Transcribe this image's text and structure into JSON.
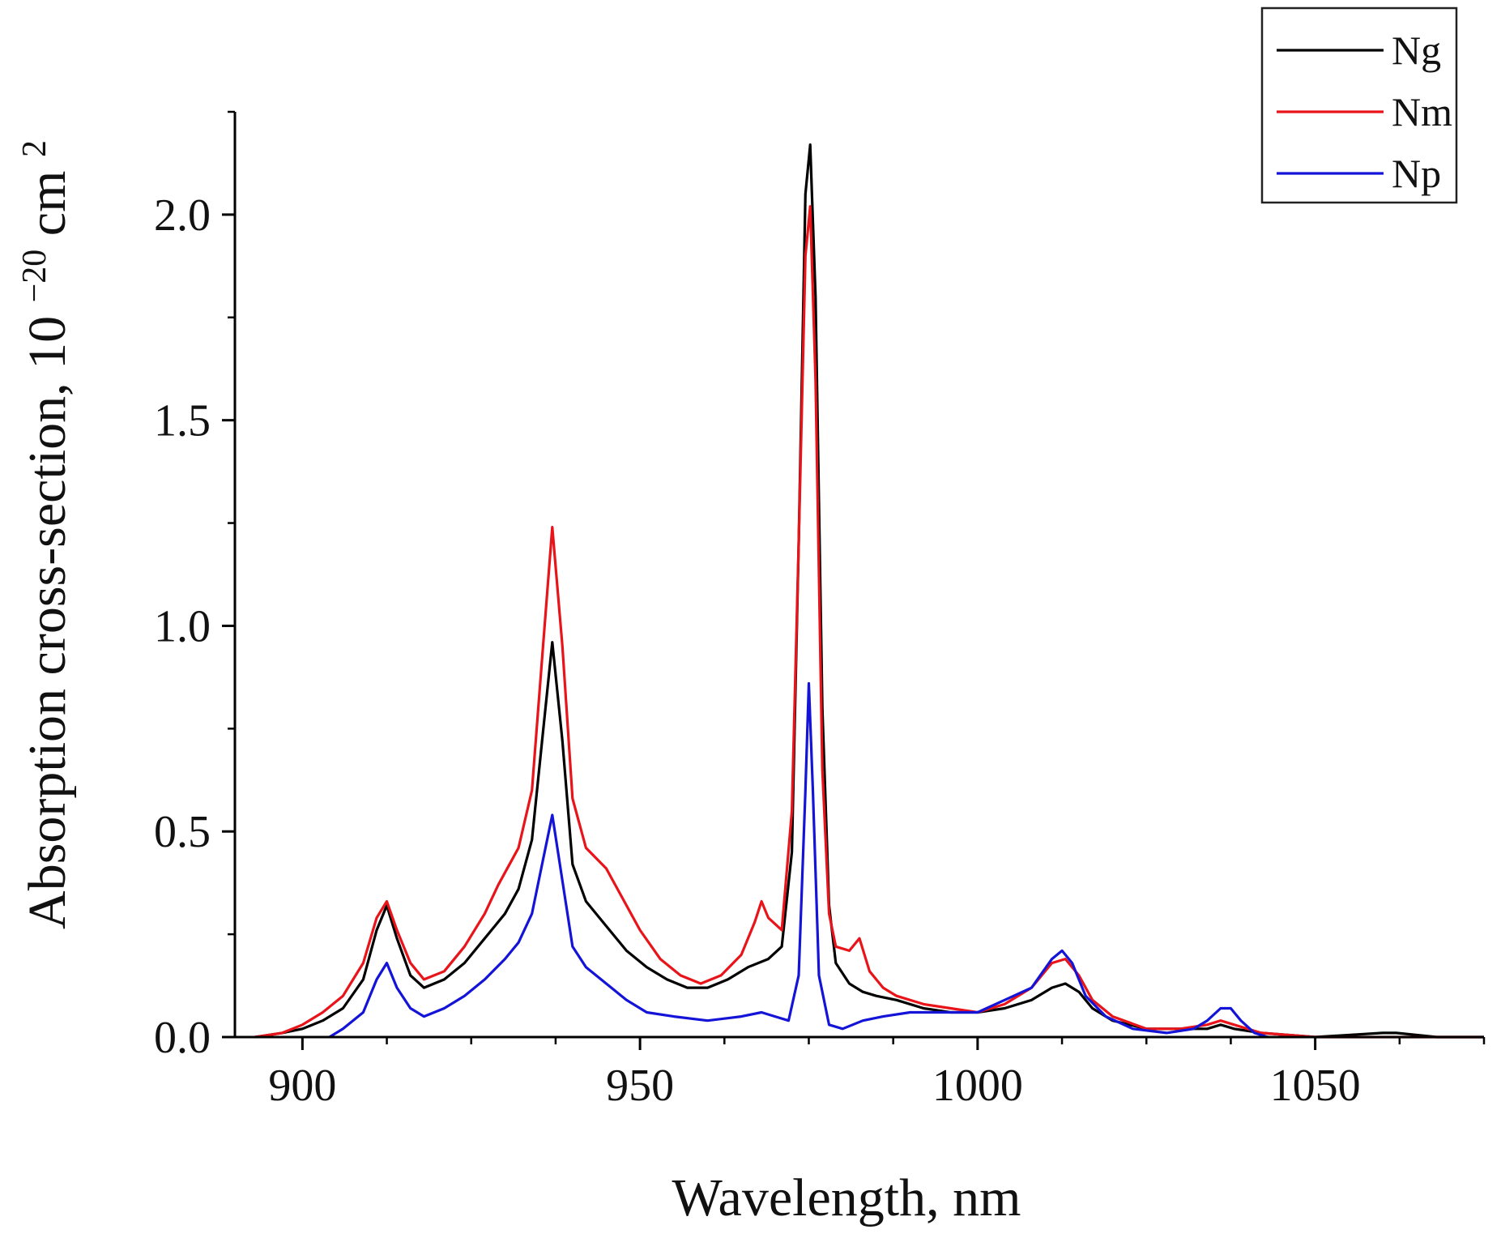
{
  "chart_data": {
    "type": "line",
    "title": "",
    "xlabel": "Wavelength, nm",
    "ylabel": {
      "main": "Absorption cross-section,",
      "unit_base": "10",
      "unit_exp": "−20",
      "unit_rest": " cm",
      "unit_rest_exp": "2"
    },
    "xlim": [
      890,
      1075
    ],
    "ylim": [
      0,
      2.25
    ],
    "xticks": [
      900,
      950,
      1000,
      1050
    ],
    "xtick_labels": [
      "900",
      "950",
      "1000",
      "1050"
    ],
    "xminor_step": 12.5,
    "yticks": [
      0,
      0.5,
      1.0,
      1.5,
      2.0
    ],
    "ytick_labels": [
      "0.0",
      "0.5",
      "1.0",
      "1.5",
      "2.0"
    ],
    "yminor_step": 0.25,
    "grid": false,
    "legend_position": "top-right",
    "series": [
      {
        "name": "Ng",
        "color": "#000000",
        "points": [
          [
            893,
            0.0
          ],
          [
            897,
            0.01
          ],
          [
            900,
            0.02
          ],
          [
            903,
            0.04
          ],
          [
            906,
            0.07
          ],
          [
            909,
            0.14
          ],
          [
            911,
            0.26
          ],
          [
            912.5,
            0.32
          ],
          [
            914,
            0.24
          ],
          [
            916,
            0.15
          ],
          [
            918,
            0.12
          ],
          [
            921,
            0.14
          ],
          [
            924,
            0.18
          ],
          [
            927,
            0.24
          ],
          [
            930,
            0.3
          ],
          [
            932,
            0.36
          ],
          [
            934,
            0.48
          ],
          [
            935.5,
            0.72
          ],
          [
            937,
            0.96
          ],
          [
            938.5,
            0.72
          ],
          [
            940,
            0.42
          ],
          [
            942,
            0.33
          ],
          [
            945,
            0.27
          ],
          [
            948,
            0.21
          ],
          [
            951,
            0.17
          ],
          [
            954,
            0.14
          ],
          [
            957,
            0.12
          ],
          [
            960,
            0.12
          ],
          [
            963,
            0.14
          ],
          [
            966,
            0.17
          ],
          [
            969,
            0.19
          ],
          [
            971,
            0.22
          ],
          [
            972.5,
            0.45
          ],
          [
            973.5,
            1.2
          ],
          [
            974.5,
            2.05
          ],
          [
            975.2,
            2.17
          ],
          [
            976,
            1.8
          ],
          [
            977,
            0.8
          ],
          [
            978,
            0.32
          ],
          [
            979,
            0.18
          ],
          [
            981,
            0.13
          ],
          [
            983,
            0.11
          ],
          [
            985,
            0.1
          ],
          [
            988,
            0.09
          ],
          [
            992,
            0.07
          ],
          [
            996,
            0.06
          ],
          [
            1000,
            0.06
          ],
          [
            1004,
            0.07
          ],
          [
            1008,
            0.09
          ],
          [
            1011,
            0.12
          ],
          [
            1013,
            0.13
          ],
          [
            1015,
            0.11
          ],
          [
            1017,
            0.07
          ],
          [
            1020,
            0.04
          ],
          [
            1025,
            0.02
          ],
          [
            1030,
            0.02
          ],
          [
            1034,
            0.02
          ],
          [
            1036,
            0.03
          ],
          [
            1038,
            0.02
          ],
          [
            1042,
            0.01
          ],
          [
            1050,
            0.0
          ],
          [
            1060,
            0.01
          ],
          [
            1062,
            0.01
          ],
          [
            1068,
            0.0
          ],
          [
            1075,
            0.0
          ]
        ]
      },
      {
        "name": "Nm",
        "color": "#e8141a",
        "points": [
          [
            893,
            0.0
          ],
          [
            897,
            0.01
          ],
          [
            900,
            0.03
          ],
          [
            903,
            0.06
          ],
          [
            906,
            0.1
          ],
          [
            909,
            0.18
          ],
          [
            911,
            0.29
          ],
          [
            912.5,
            0.33
          ],
          [
            914,
            0.26
          ],
          [
            916,
            0.18
          ],
          [
            918,
            0.14
          ],
          [
            921,
            0.16
          ],
          [
            924,
            0.22
          ],
          [
            927,
            0.3
          ],
          [
            929,
            0.37
          ],
          [
            932,
            0.46
          ],
          [
            934,
            0.6
          ],
          [
            935.5,
            0.92
          ],
          [
            937,
            1.24
          ],
          [
            938.5,
            0.95
          ],
          [
            940,
            0.58
          ],
          [
            942,
            0.46
          ],
          [
            945,
            0.41
          ],
          [
            947,
            0.35
          ],
          [
            950,
            0.26
          ],
          [
            953,
            0.19
          ],
          [
            956,
            0.15
          ],
          [
            959,
            0.13
          ],
          [
            962,
            0.15
          ],
          [
            965,
            0.2
          ],
          [
            967,
            0.28
          ],
          [
            968,
            0.33
          ],
          [
            969,
            0.29
          ],
          [
            971,
            0.26
          ],
          [
            972.5,
            0.55
          ],
          [
            973.5,
            1.2
          ],
          [
            974.5,
            1.9
          ],
          [
            975.2,
            2.02
          ],
          [
            976,
            1.6
          ],
          [
            977,
            0.65
          ],
          [
            978,
            0.3
          ],
          [
            979,
            0.22
          ],
          [
            981,
            0.21
          ],
          [
            982.5,
            0.24
          ],
          [
            984,
            0.16
          ],
          [
            986,
            0.12
          ],
          [
            988,
            0.1
          ],
          [
            992,
            0.08
          ],
          [
            996,
            0.07
          ],
          [
            1000,
            0.06
          ],
          [
            1004,
            0.08
          ],
          [
            1008,
            0.12
          ],
          [
            1011,
            0.18
          ],
          [
            1013,
            0.19
          ],
          [
            1015,
            0.15
          ],
          [
            1017,
            0.09
          ],
          [
            1020,
            0.05
          ],
          [
            1025,
            0.02
          ],
          [
            1030,
            0.02
          ],
          [
            1034,
            0.03
          ],
          [
            1036,
            0.04
          ],
          [
            1038,
            0.03
          ],
          [
            1042,
            0.01
          ],
          [
            1050,
            0.0
          ],
          [
            1075,
            0.0
          ]
        ]
      },
      {
        "name": "Np",
        "color": "#1414d8",
        "points": [
          [
            904,
            0.0
          ],
          [
            906,
            0.02
          ],
          [
            909,
            0.06
          ],
          [
            911,
            0.14
          ],
          [
            912.5,
            0.18
          ],
          [
            914,
            0.12
          ],
          [
            916,
            0.07
          ],
          [
            918,
            0.05
          ],
          [
            921,
            0.07
          ],
          [
            924,
            0.1
          ],
          [
            927,
            0.14
          ],
          [
            930,
            0.19
          ],
          [
            932,
            0.23
          ],
          [
            934,
            0.3
          ],
          [
            935.5,
            0.42
          ],
          [
            937,
            0.54
          ],
          [
            938.5,
            0.38
          ],
          [
            940,
            0.22
          ],
          [
            942,
            0.17
          ],
          [
            945,
            0.13
          ],
          [
            948,
            0.09
          ],
          [
            951,
            0.06
          ],
          [
            955,
            0.05
          ],
          [
            960,
            0.04
          ],
          [
            965,
            0.05
          ],
          [
            968,
            0.06
          ],
          [
            970,
            0.05
          ],
          [
            972,
            0.04
          ],
          [
            973.5,
            0.15
          ],
          [
            974.5,
            0.6
          ],
          [
            975,
            0.86
          ],
          [
            975.6,
            0.6
          ],
          [
            976.5,
            0.15
          ],
          [
            978,
            0.03
          ],
          [
            980,
            0.02
          ],
          [
            983,
            0.04
          ],
          [
            986,
            0.05
          ],
          [
            990,
            0.06
          ],
          [
            995,
            0.06
          ],
          [
            1000,
            0.06
          ],
          [
            1004,
            0.09
          ],
          [
            1008,
            0.12
          ],
          [
            1011,
            0.19
          ],
          [
            1012.5,
            0.21
          ],
          [
            1014,
            0.18
          ],
          [
            1016,
            0.1
          ],
          [
            1019,
            0.05
          ],
          [
            1023,
            0.02
          ],
          [
            1028,
            0.01
          ],
          [
            1032,
            0.02
          ],
          [
            1034,
            0.04
          ],
          [
            1036,
            0.07
          ],
          [
            1037.5,
            0.07
          ],
          [
            1039,
            0.04
          ],
          [
            1041,
            0.01
          ],
          [
            1043,
            0.0
          ]
        ]
      }
    ]
  }
}
